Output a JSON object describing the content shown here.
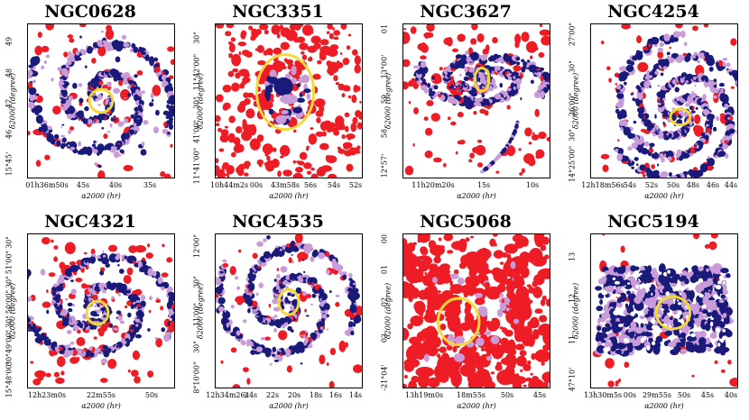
{
  "figure": {
    "y_axis_label": "δ2000 (degree)",
    "x_axis_label": "α2000 (hr)",
    "colors": {
      "red": "#ee1c25",
      "navy": "#1a1a7a",
      "lilac": "#c99bd9",
      "ring": "#f2d93a"
    },
    "panels": [
      {
        "title": "NGC0628",
        "y_ticks": [
          "49",
          "48",
          "47",
          "46",
          "15°45'"
        ],
        "x_ticks": [
          "01h36m50s",
          "45s",
          "40s",
          "35s"
        ]
      },
      {
        "title": "NGC3351",
        "y_ticks": [
          "30\"",
          "11°42'00\"",
          "30\"",
          "41'00\"",
          "11°41'00\""
        ],
        "x_ticks": [
          "10h44m2s",
          "00s",
          "43m58s",
          "56s",
          "54s",
          "52s"
        ]
      },
      {
        "title": "NGC3627",
        "y_ticks": [
          "01",
          "13°00'",
          "59",
          "58",
          "12°57'"
        ],
        "x_ticks": [
          "11h20m20s",
          "15s",
          "10s"
        ]
      },
      {
        "title": "NGC4254",
        "y_ticks": [
          "27'00\"",
          "30\"",
          "26'00\"",
          "30\"",
          "14°25'00\""
        ],
        "x_ticks": [
          "12h18m56s",
          "54s",
          "52s",
          "50s",
          "48s",
          "46s",
          "44s"
        ]
      },
      {
        "title": "NGC4321",
        "y_ticks": [
          "30\"",
          "51'00\"",
          "30\"",
          "50'00\"",
          "30\"",
          "49'00\"",
          "30\"",
          "15°48'00\""
        ],
        "x_ticks": [
          "12h23m0s",
          "22m55s",
          "50s"
        ]
      },
      {
        "title": "NGC4535",
        "y_ticks": [
          "12'00\"",
          "30\"",
          "11'00\"",
          "30\"",
          "8°10'00\""
        ],
        "x_ticks": [
          "12h34m26s",
          "24s",
          "22s",
          "20s",
          "18s",
          "16s",
          "14s"
        ]
      },
      {
        "title": "NGC5068",
        "y_ticks": [
          "00",
          "01",
          "02",
          "03",
          "-21°04'"
        ],
        "x_ticks": [
          "13h19m0s",
          "18m55s",
          "50s",
          "45s"
        ]
      },
      {
        "title": "NGC5194",
        "y_ticks": [
          "13",
          "12",
          "11",
          "47°10'"
        ],
        "x_ticks": [
          "13h30m5s",
          "00s",
          "29m55s",
          "50s",
          "45s",
          "40s"
        ]
      }
    ]
  }
}
